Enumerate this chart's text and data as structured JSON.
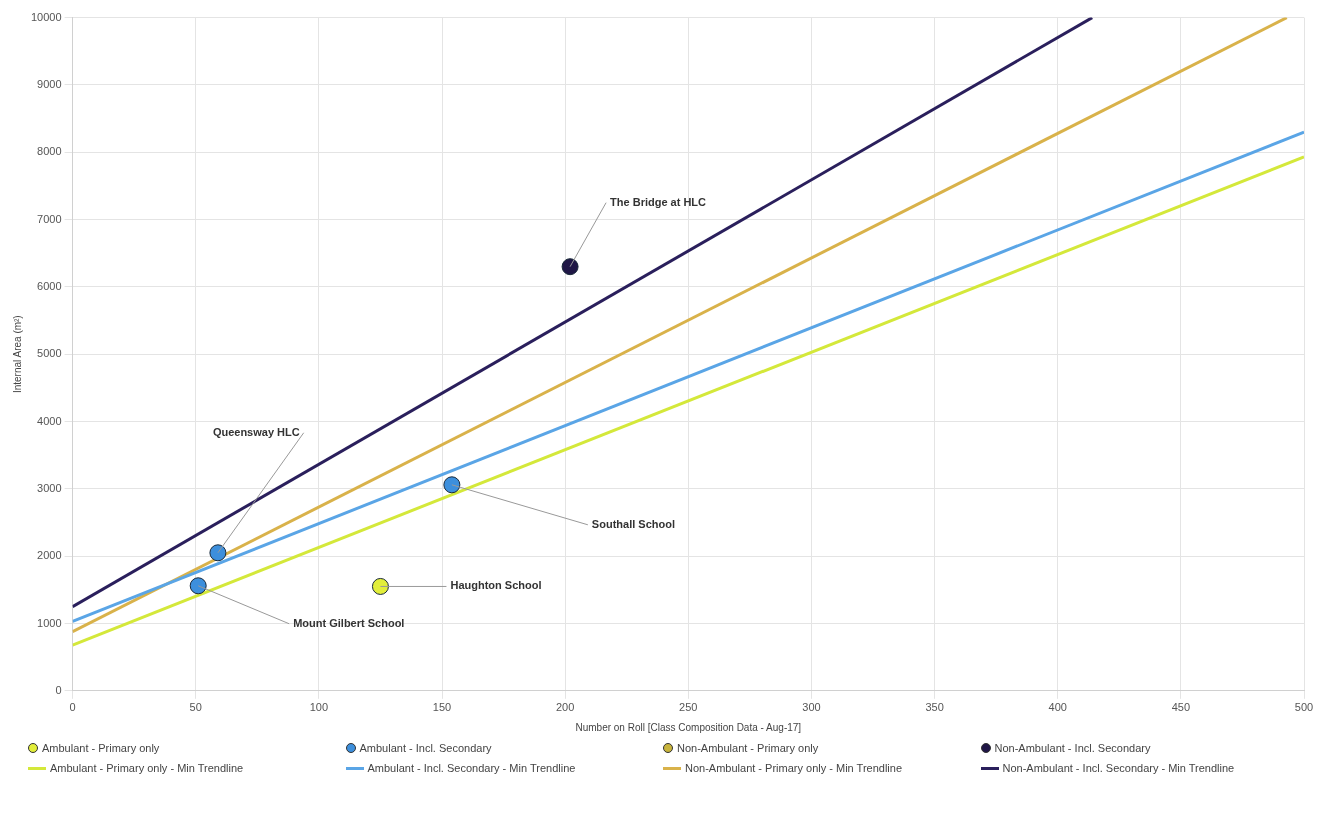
{
  "chart_data": {
    "type": "scatter",
    "xlabel": "Number on Roll [Class Composition Data - Aug-17]",
    "ylabel": "Internal Area (m²)",
    "xlim": [
      0,
      500
    ],
    "xticks": [
      0,
      50,
      100,
      150,
      200,
      250,
      300,
      350,
      400,
      450,
      500
    ],
    "ylim": [
      0,
      10000
    ],
    "yticks": [
      0,
      1000,
      2000,
      3000,
      4000,
      5000,
      6000,
      7000,
      8000,
      9000,
      10000
    ],
    "grid": true,
    "legend": "bottom",
    "series": [
      {
        "name": "Ambulant - Primary only",
        "type": "scatter",
        "marker": "circle",
        "color": "#e2ee3a",
        "x": [
          125
        ],
        "values": [
          1550
        ]
      },
      {
        "name": "Ambulant - Incl. Secondary",
        "type": "scatter",
        "marker": "circle",
        "color": "#3d8fdc",
        "x": [
          59,
          51,
          154
        ],
        "values": [
          2050,
          1560,
          3060
        ]
      },
      {
        "name": "Non-Ambulant - Primary only",
        "type": "scatter",
        "marker": "circle",
        "color": "#c8b43c"
      },
      {
        "name": "Non-Ambulant - Incl. Secondary",
        "type": "scatter",
        "marker": "circle",
        "color": "#1f1646",
        "x": [
          202
        ],
        "values": [
          6300
        ]
      },
      {
        "name": "Ambulant - Primary only - Min Trendline",
        "type": "line",
        "color": "#d4e83a",
        "x": [
          0,
          500
        ],
        "values": [
          680,
          7930
        ]
      },
      {
        "name": "Ambulant - Incl. Secondary - Min Trendline",
        "type": "line",
        "color": "#5aa5e6",
        "x": [
          0,
          500
        ],
        "values": [
          1030,
          8300
        ]
      },
      {
        "name": "Non-Ambulant - Primary only - Min Trendline",
        "type": "line",
        "color": "#d9b24a",
        "x": [
          0,
          493
        ],
        "values": [
          880,
          10000
        ]
      },
      {
        "name": "Non-Ambulant - Incl. Secondary - Min Trendline",
        "type": "line",
        "color": "#2a1f5c",
        "x": [
          0,
          414
        ],
        "values": [
          1250,
          10000
        ]
      }
    ],
    "annotations": [
      {
        "text": "Queensway HLC",
        "x": 59,
        "y": 2050
      },
      {
        "text": "Mount Gilbert School",
        "x": 51,
        "y": 1560
      },
      {
        "text": "Southall School",
        "x": 154,
        "y": 3060
      },
      {
        "text": "Haughton School",
        "x": 125,
        "y": 1550
      },
      {
        "text": "The Bridge at HLC",
        "x": 202,
        "y": 6300
      }
    ]
  }
}
